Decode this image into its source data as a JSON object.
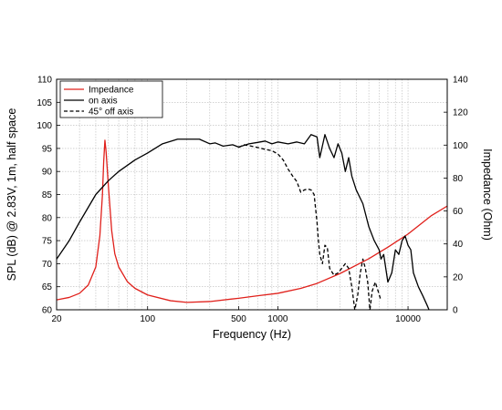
{
  "chart_data": {
    "type": "line",
    "xlabel": "Frequency (Hz)",
    "ylabel_left": "SPL (dB) @ 2.83V, 1m, half space",
    "ylabel_right": "Impedance (Ohm)",
    "xscale": "log",
    "xlim": [
      20,
      20000
    ],
    "ylim_left": [
      60,
      110
    ],
    "ylim_right": [
      0,
      140
    ],
    "grid": true,
    "legend_position": "top-left",
    "x_tick_labels": [
      {
        "value": 20,
        "label": "20"
      },
      {
        "value": 100,
        "label": "100"
      },
      {
        "value": 500,
        "label": "500"
      },
      {
        "value": 1000,
        "label": "1000"
      },
      {
        "value": 10000,
        "label": "10000"
      }
    ],
    "y_left_ticks": [
      60,
      65,
      70,
      75,
      80,
      85,
      90,
      95,
      100,
      105,
      110
    ],
    "y_right_ticks": [
      0,
      20,
      40,
      60,
      80,
      100,
      120,
      140
    ],
    "series": [
      {
        "name": "Impedance",
        "axis": "right",
        "color": "#e0201b",
        "style": "solid",
        "points": [
          [
            20,
            6
          ],
          [
            25,
            7.5
          ],
          [
            30,
            10
          ],
          [
            35,
            15
          ],
          [
            40,
            26
          ],
          [
            43,
            45
          ],
          [
            45,
            70
          ],
          [
            46,
            90
          ],
          [
            47,
            103
          ],
          [
            48,
            96
          ],
          [
            50,
            75
          ],
          [
            53,
            48
          ],
          [
            56,
            34
          ],
          [
            60,
            26
          ],
          [
            70,
            17
          ],
          [
            80,
            13
          ],
          [
            100,
            9
          ],
          [
            150,
            5.5
          ],
          [
            200,
            4.5
          ],
          [
            300,
            5
          ],
          [
            500,
            7
          ],
          [
            700,
            8.5
          ],
          [
            1000,
            10
          ],
          [
            1500,
            13
          ],
          [
            2000,
            16
          ],
          [
            3000,
            22
          ],
          [
            5000,
            31
          ],
          [
            7000,
            38
          ],
          [
            10000,
            46
          ],
          [
            15000,
            57
          ],
          [
            20000,
            63
          ]
        ]
      },
      {
        "name": "on axis",
        "axis": "left",
        "color": "#000000",
        "style": "solid",
        "points": [
          [
            20,
            71
          ],
          [
            25,
            75
          ],
          [
            30,
            79
          ],
          [
            40,
            85
          ],
          [
            50,
            88
          ],
          [
            60,
            90
          ],
          [
            80,
            92.5
          ],
          [
            100,
            94
          ],
          [
            130,
            96
          ],
          [
            170,
            97
          ],
          [
            200,
            97
          ],
          [
            250,
            97
          ],
          [
            300,
            96
          ],
          [
            330,
            96.2
          ],
          [
            380,
            95.5
          ],
          [
            450,
            95.8
          ],
          [
            500,
            95.3
          ],
          [
            600,
            96
          ],
          [
            700,
            96.3
          ],
          [
            800,
            96.6
          ],
          [
            900,
            96
          ],
          [
            1000,
            96.4
          ],
          [
            1200,
            96
          ],
          [
            1400,
            96.4
          ],
          [
            1600,
            96
          ],
          [
            1800,
            98
          ],
          [
            2000,
            97.5
          ],
          [
            2100,
            93
          ],
          [
            2300,
            98
          ],
          [
            2500,
            95
          ],
          [
            2700,
            93
          ],
          [
            2900,
            96
          ],
          [
            3100,
            94
          ],
          [
            3300,
            90
          ],
          [
            3500,
            93
          ],
          [
            3700,
            89
          ],
          [
            4000,
            86
          ],
          [
            4500,
            83
          ],
          [
            5000,
            78
          ],
          [
            5500,
            75
          ],
          [
            6000,
            73
          ],
          [
            6200,
            71
          ],
          [
            6500,
            72
          ],
          [
            7000,
            66
          ],
          [
            7500,
            68
          ],
          [
            8000,
            73
          ],
          [
            8500,
            72
          ],
          [
            9000,
            75
          ],
          [
            9500,
            76
          ],
          [
            10000,
            74
          ],
          [
            10500,
            73
          ],
          [
            11000,
            68
          ],
          [
            12000,
            65
          ],
          [
            13000,
            63
          ],
          [
            14000,
            61
          ],
          [
            15000,
            59
          ],
          [
            16000,
            58
          ]
        ]
      },
      {
        "name": "45° off axis",
        "axis": "left",
        "color": "#000000",
        "style": "dashed",
        "points": [
          [
            500,
            95.2
          ],
          [
            550,
            95.8
          ],
          [
            600,
            95.6
          ],
          [
            700,
            95.2
          ],
          [
            800,
            94.8
          ],
          [
            900,
            94.5
          ],
          [
            1000,
            93.8
          ],
          [
            1100,
            92.5
          ],
          [
            1200,
            90.5
          ],
          [
            1300,
            89
          ],
          [
            1400,
            87.8
          ],
          [
            1500,
            85.5
          ],
          [
            1600,
            86
          ],
          [
            1700,
            86.2
          ],
          [
            1800,
            86
          ],
          [
            1900,
            85
          ],
          [
            2000,
            79
          ],
          [
            2050,
            75
          ],
          [
            2100,
            72
          ],
          [
            2200,
            70
          ],
          [
            2300,
            74
          ],
          [
            2400,
            73.5
          ],
          [
            2500,
            69
          ],
          [
            2700,
            67.5
          ],
          [
            2900,
            68
          ],
          [
            3100,
            69
          ],
          [
            3300,
            70
          ],
          [
            3500,
            69
          ],
          [
            3700,
            65
          ],
          [
            3900,
            60
          ],
          [
            4100,
            63
          ],
          [
            4300,
            68
          ],
          [
            4500,
            71
          ],
          [
            4700,
            69
          ],
          [
            4900,
            66
          ],
          [
            5100,
            60
          ],
          [
            5300,
            64
          ],
          [
            5600,
            66
          ],
          [
            5900,
            64
          ],
          [
            6200,
            62
          ]
        ]
      }
    ]
  }
}
